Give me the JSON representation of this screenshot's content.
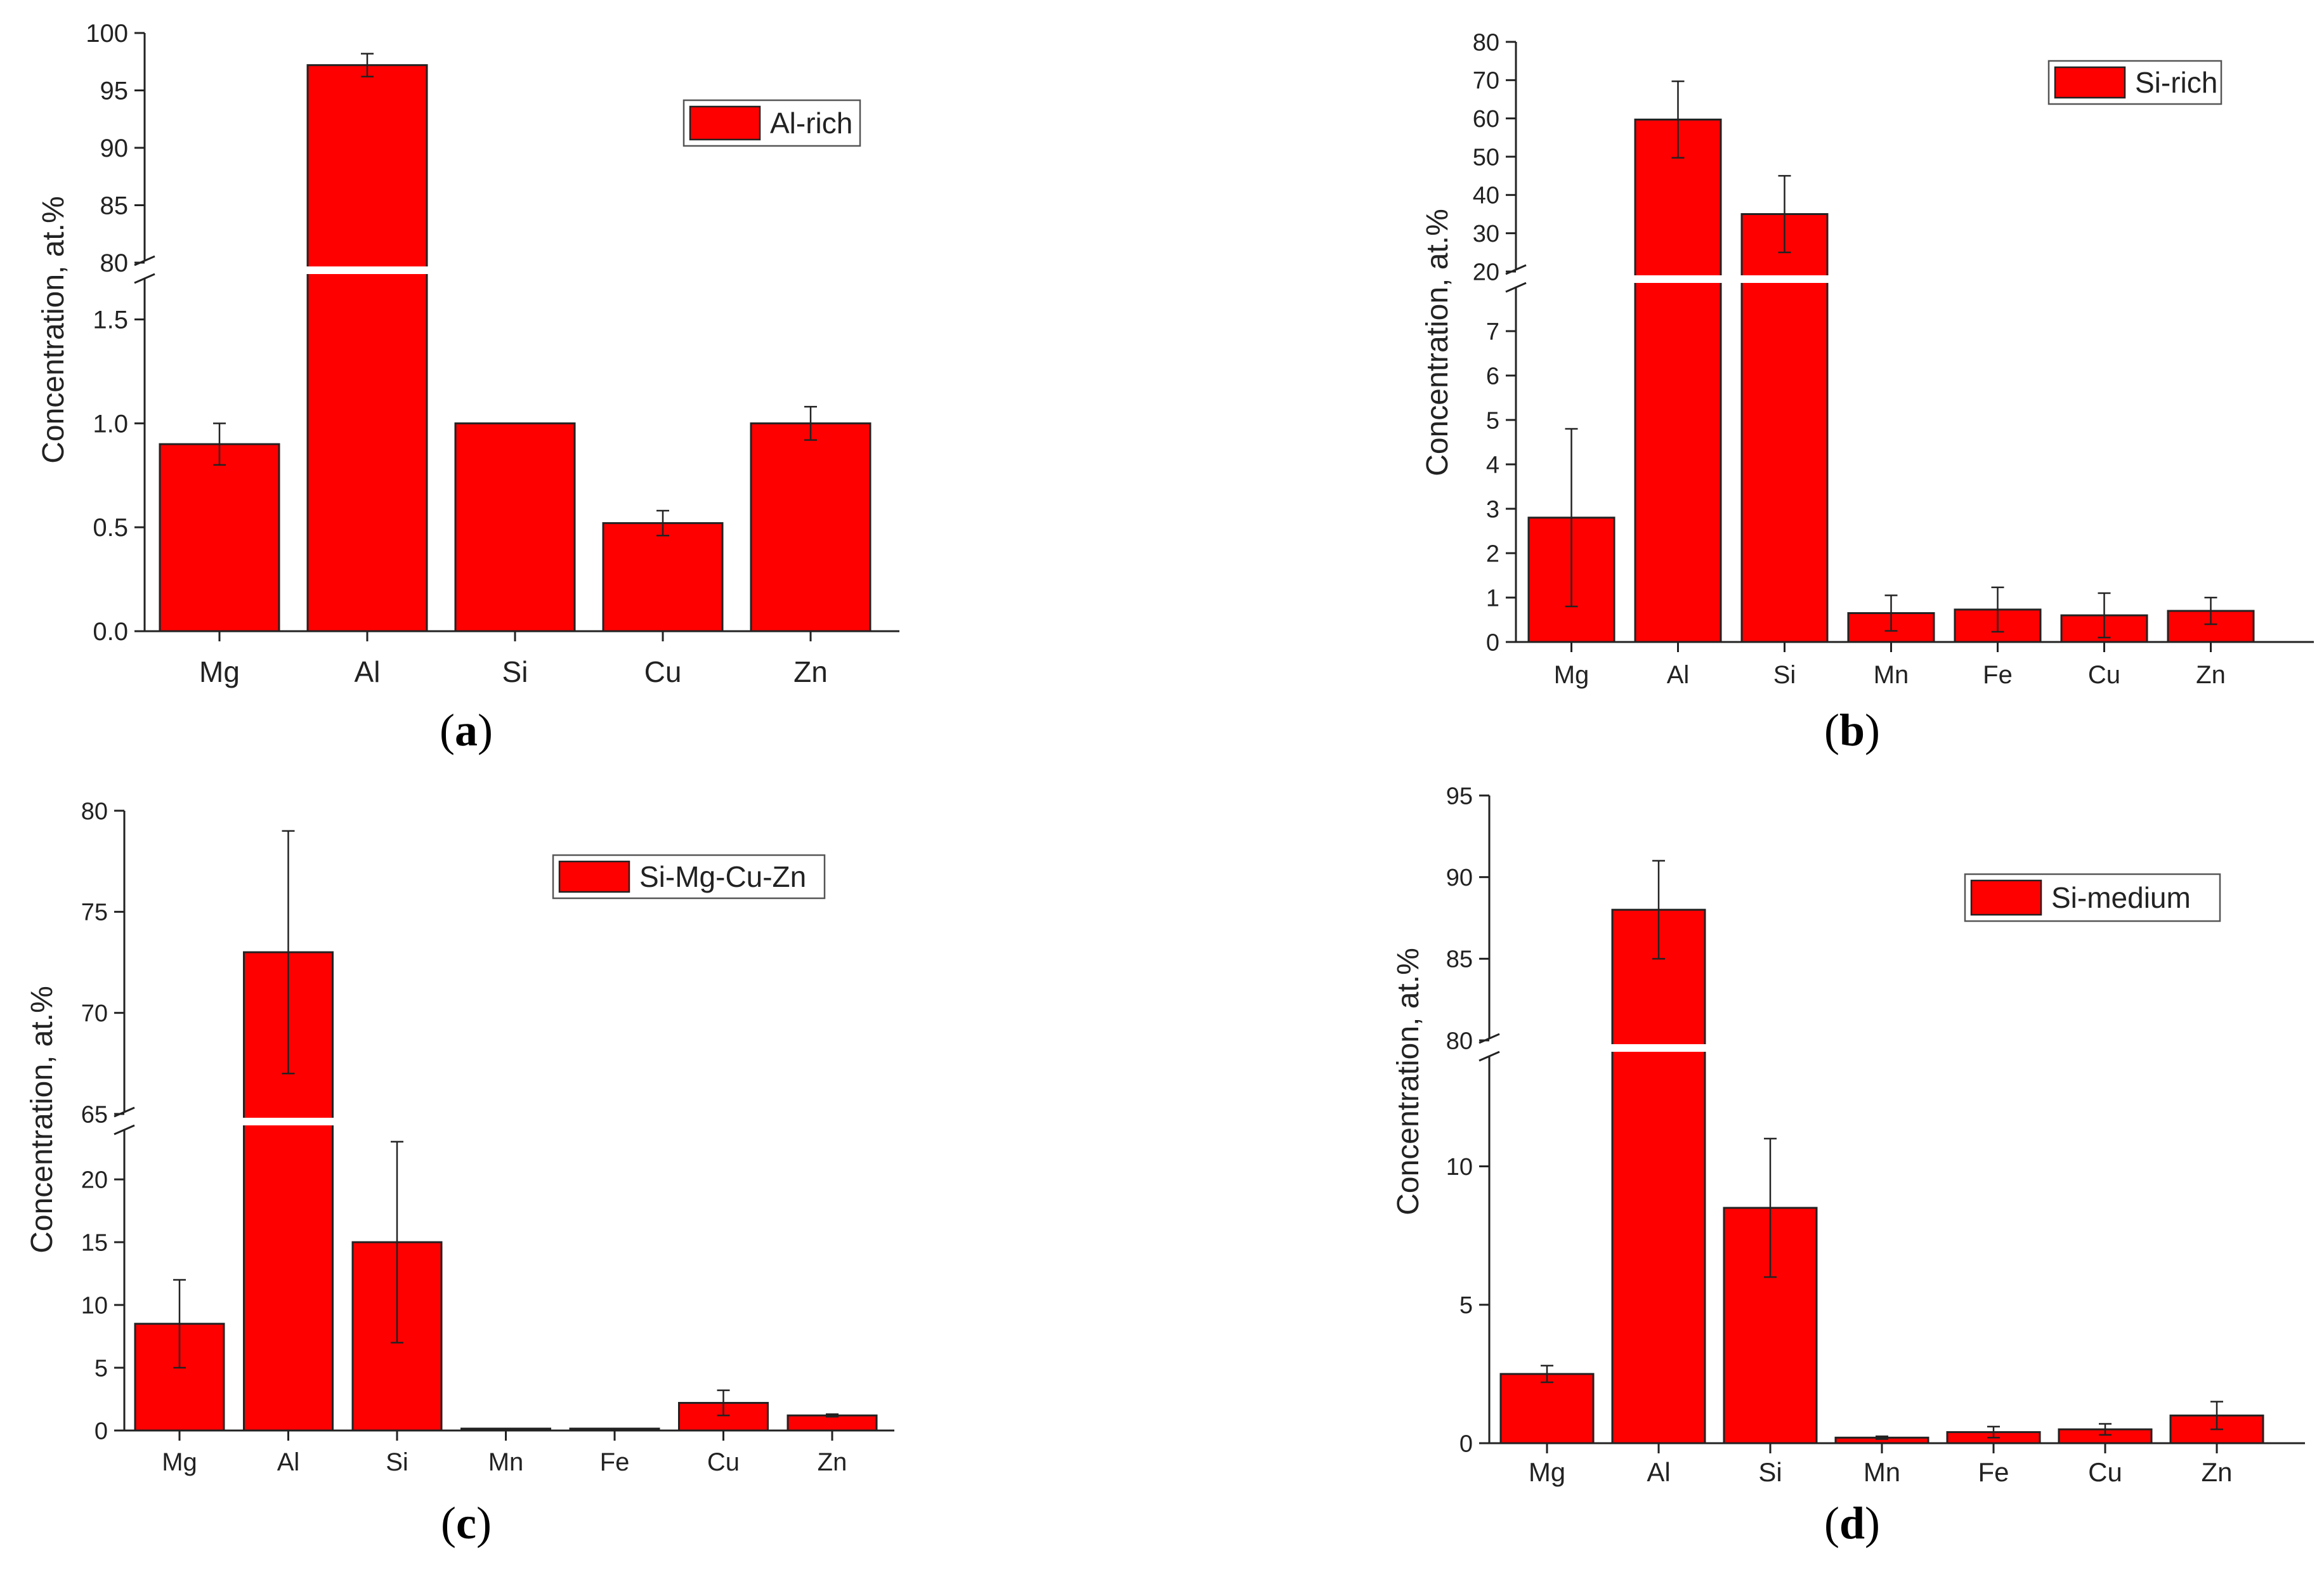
{
  "colors": {
    "bar": "#ff0000",
    "stroke": "#222222",
    "break_gap": "#ffffff"
  },
  "chart_data": [
    {
      "id": "a",
      "panel_label": "a",
      "type": "bar",
      "legend": "Al-rich",
      "ylabel": "Concentration, at.%",
      "categories": [
        "Mg",
        "Al",
        "Si",
        "Cu",
        "Zn"
      ],
      "values": [
        0.9,
        97.2,
        1.0,
        0.52,
        1.0
      ],
      "errors": [
        0.1,
        1.0,
        0.0,
        0.06,
        0.08
      ],
      "y_break": {
        "lower_range": [
          0,
          1.7
        ],
        "upper_range": [
          80,
          100
        ]
      },
      "lower_ticks": [
        "0.0",
        "0.5",
        "1.0",
        "1.5"
      ],
      "upper_ticks": [
        "80",
        "85",
        "90",
        "95",
        "100"
      ]
    },
    {
      "id": "b",
      "panel_label": "b",
      "type": "bar",
      "legend": "Si-rich",
      "ylabel": "Concentration, at.%",
      "categories": [
        "Mg",
        "Al",
        "Si",
        "Mn",
        "Fe",
        "Cu",
        "Zn"
      ],
      "values": [
        2.8,
        59.7,
        35.0,
        0.65,
        0.73,
        0.6,
        0.7
      ],
      "errors": [
        2.0,
        10.0,
        10.0,
        0.4,
        0.5,
        0.5,
        0.3
      ],
      "y_break": {
        "lower_range": [
          0,
          8
        ],
        "upper_range": [
          20,
          80
        ]
      },
      "lower_ticks": [
        "0",
        "1",
        "2",
        "3",
        "4",
        "5",
        "6",
        "7"
      ],
      "upper_ticks": [
        "20",
        "30",
        "40",
        "50",
        "60",
        "70",
        "80"
      ]
    },
    {
      "id": "c",
      "panel_label": "c",
      "type": "bar",
      "legend": "Si-Mg-Cu-Zn",
      "ylabel": "Concentration, at.%",
      "categories": [
        "Mg",
        "Al",
        "Si",
        "Mn",
        "Fe",
        "Cu",
        "Zn"
      ],
      "values": [
        8.5,
        73.0,
        15.0,
        0.15,
        0.15,
        2.2,
        1.2
      ],
      "errors": [
        3.5,
        6.0,
        8.0,
        0.0,
        0.0,
        1.0,
        0.1
      ],
      "y_break": {
        "lower_range": [
          0,
          24
        ],
        "upper_range": [
          65,
          80
        ]
      },
      "lower_ticks": [
        "0",
        "5",
        "10",
        "15",
        "20"
      ],
      "upper_ticks": [
        "65",
        "70",
        "75",
        "80"
      ]
    },
    {
      "id": "d",
      "panel_label": "d",
      "type": "bar",
      "legend": "Si-medium",
      "ylabel": "Concentration, at.%",
      "categories": [
        "Mg",
        "Al",
        "Si",
        "Mn",
        "Fe",
        "Cu",
        "Zn"
      ],
      "values": [
        2.5,
        88.0,
        8.5,
        0.2,
        0.4,
        0.5,
        1.0
      ],
      "errors": [
        0.3,
        3.0,
        2.5,
        0.05,
        0.2,
        0.2,
        0.5
      ],
      "y_break": {
        "lower_range": [
          0,
          14
        ],
        "upper_range": [
          80,
          95
        ]
      },
      "lower_ticks": [
        "0",
        "5",
        "10"
      ],
      "upper_ticks": [
        "80",
        "85",
        "90",
        "95"
      ]
    }
  ]
}
